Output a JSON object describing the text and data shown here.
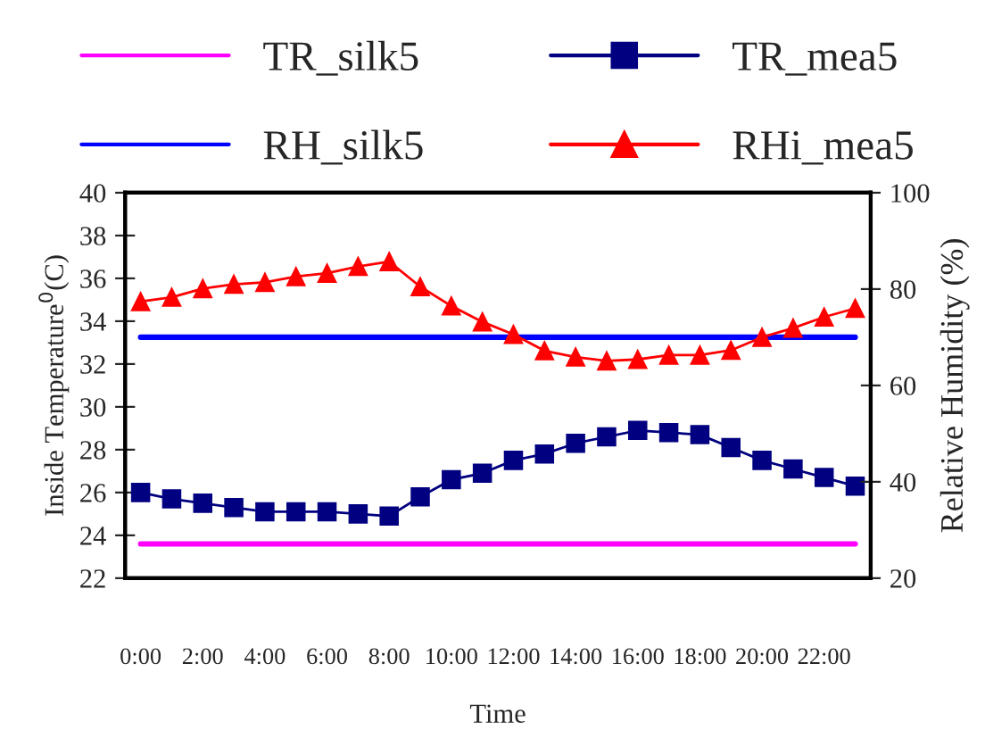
{
  "chart_data": {
    "type": "line",
    "xlabel": "Time",
    "ylabel": "Inside Temperature$^{0}$(C)",
    "y2label": "Relative Humidity (%)",
    "categories": [
      "0:00",
      null,
      "2:00",
      null,
      "4:00",
      null,
      "6:00",
      null,
      "8:00",
      null,
      "10:00",
      null,
      "12:00",
      null,
      "14:00",
      null,
      "16:00",
      null,
      "18:00",
      null,
      "20:00",
      null,
      "22:00",
      null
    ],
    "series": [
      {
        "name": "TR_silk5",
        "color": "#ff00ff",
        "marker": "none",
        "values": [
          23.6,
          23.6,
          23.6,
          23.6,
          23.6,
          23.6,
          23.6,
          23.6,
          23.6,
          23.6,
          23.6,
          23.6,
          23.6,
          23.6,
          23.6,
          23.6,
          23.6,
          23.6,
          23.6,
          23.6,
          23.6,
          23.6,
          23.6,
          23.6
        ]
      },
      {
        "name": "TR_mea5",
        "color": "#000080",
        "marker": "square",
        "values": [
          26.0,
          25.7,
          25.5,
          25.3,
          25.1,
          25.1,
          25.1,
          25.0,
          24.9,
          25.8,
          26.6,
          26.9,
          27.5,
          27.8,
          28.3,
          28.6,
          28.9,
          28.8,
          28.7,
          28.1,
          27.5,
          27.1,
          26.7,
          26.3
        ]
      },
      {
        "name": "RH_silk5",
        "color": "#0000ff",
        "marker": "none",
        "axis": "y2",
        "values": [
          70,
          70,
          70,
          70,
          70,
          70,
          70,
          70,
          70,
          70,
          70,
          70,
          70,
          70,
          70,
          70,
          70,
          70,
          70,
          70,
          70,
          70,
          70,
          70
        ]
      },
      {
        "name": "RHi_mea5",
        "color": "#ff0000",
        "marker": "triangle",
        "axis": "y2",
        "values": [
          77.4,
          78.3,
          80.1,
          81.0,
          81.4,
          82.6,
          83.3,
          84.7,
          85.7,
          80.5,
          76.5,
          73.2,
          70.6,
          67.2,
          65.9,
          65.1,
          65.4,
          66.3,
          66.3,
          67.3,
          70.0,
          71.9,
          74.2,
          76.0
        ]
      }
    ],
    "ylim": [
      22,
      40
    ],
    "yticks": [
      22,
      24,
      26,
      28,
      30,
      32,
      34,
      36,
      38,
      40
    ],
    "y2lim": [
      20,
      100
    ],
    "y2ticks": [
      20,
      40,
      60,
      80,
      100
    ],
    "grid": false,
    "legend": "top",
    "line_style": "solid"
  }
}
